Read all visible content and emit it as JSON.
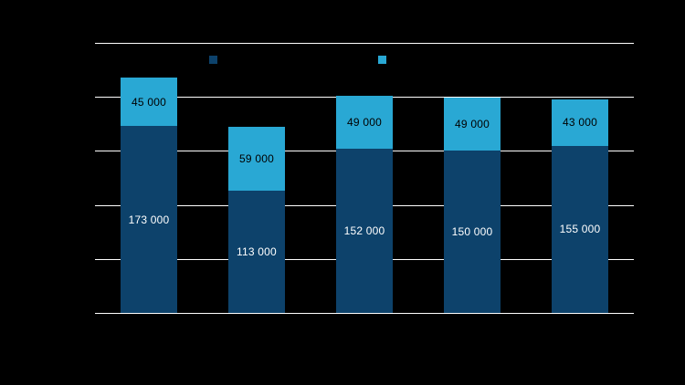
{
  "chart_data": {
    "type": "stacked-bar",
    "title": "",
    "background_color": "#000000",
    "gridline_color": "#ffffff",
    "ylim": [
      0,
      250000
    ],
    "grid_step": 50000,
    "gridline_values": [
      0,
      50000,
      100000,
      150000,
      200000,
      250000
    ],
    "grid_on": true,
    "legend_position": "top",
    "categories": [
      "",
      "",
      "",
      "",
      ""
    ],
    "series": [
      {
        "name": "",
        "role": "bottom-segment",
        "color": "#0d426b",
        "label_color": "#ffffff",
        "values": [
          173000,
          113000,
          152000,
          150000,
          155000
        ],
        "labels": [
          "173 000",
          "113 000",
          "152 000",
          "150 000",
          "155 000"
        ]
      },
      {
        "name": "",
        "role": "top-segment",
        "color": "#29a8d4",
        "label_color": "#000000",
        "values": [
          45000,
          59000,
          49000,
          49000,
          43000
        ],
        "labels": [
          "45 000",
          "59 000",
          "49 000",
          "49 000",
          "43 000"
        ]
      }
    ],
    "totals": [
      218000,
      172000,
      201000,
      199000,
      198000
    ],
    "legend": {
      "markers": [
        {
          "name": "series-1-marker",
          "color": "#0d426b"
        },
        {
          "name": "series-2-marker",
          "color": "#29a8d4"
        }
      ]
    }
  }
}
